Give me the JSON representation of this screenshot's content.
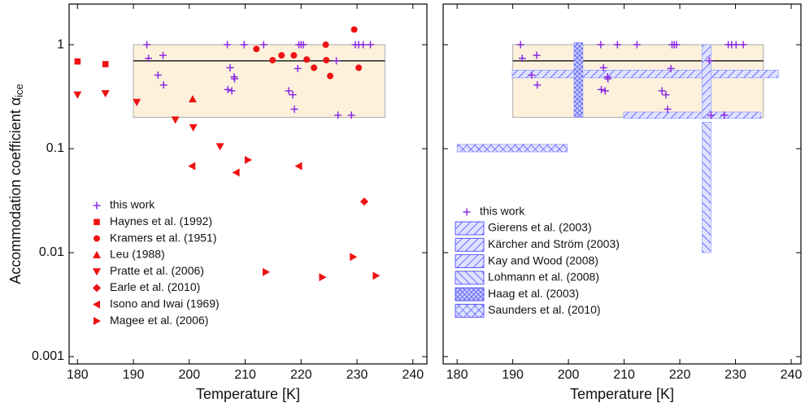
{
  "chart_data": [
    {
      "type": "scatter",
      "x_label": "Temperature [K]",
      "y_label": "Accommodation coefficient α",
      "y_label_sub": "ice",
      "xlim": [
        178.5,
        242.5
      ],
      "xticks": [
        180,
        190,
        200,
        210,
        220,
        230,
        240
      ],
      "ylim": [
        0.00085,
        2.46
      ],
      "yticks": [
        0.001,
        0.01,
        0.1,
        1
      ],
      "ylog": true,
      "grid": false,
      "legend": "lower left",
      "box": {
        "x": [
          190,
          235
        ],
        "y": [
          0.2,
          1
        ],
        "line": 0.7,
        "color": "#fdf1dc"
      },
      "series": [
        {
          "name": "this work",
          "marker": "plus",
          "color": "#8a2be2",
          "x": [
            192.4,
            192.7,
            194.4,
            195.3,
            195.4,
            206.8,
            207.3,
            206.9,
            207.6,
            208,
            208.1,
            209.8,
            213.3,
            217.8,
            218.5,
            218.8,
            219.4,
            219.6,
            220,
            220.4,
            226.3,
            226.6,
            229,
            229.7,
            230.3,
            231.1,
            232.4
          ],
          "values": [
            1,
            0.74,
            0.51,
            0.79,
            0.41,
            1,
            0.6,
            0.37,
            0.36,
            0.49,
            0.47,
            1,
            1,
            0.36,
            0.33,
            0.24,
            0.59,
            1,
            1,
            1,
            0.7,
            0.21,
            0.21,
            1,
            1,
            1,
            1
          ]
        },
        {
          "name": "Haynes et al. (1992)",
          "marker": "square",
          "color": "#ee1111",
          "x": [
            180,
            185
          ],
          "values": [
            0.69,
            0.65
          ]
        },
        {
          "name": "Kramers et al. (1951)",
          "marker": "circle",
          "color": "#ee1111",
          "x": [
            212,
            214.9,
            216.5,
            218.7,
            221,
            222.3,
            224.4,
            224.5,
            225.2,
            229.5,
            230.3
          ],
          "values": [
            0.91,
            0.71,
            0.79,
            0.79,
            0.72,
            0.6,
            1,
            0.71,
            0.5,
            1.4,
            0.6
          ]
        },
        {
          "name": "Leu (1988)",
          "marker": "triangle-up",
          "color": "#ee1111",
          "x": [
            200.6
          ],
          "values": [
            0.3
          ]
        },
        {
          "name": "Pratte et al. (2006)",
          "marker": "triangle-down",
          "color": "#ee1111",
          "x": [
            180,
            185,
            190.6,
            197.5,
            200.7,
            205.5
          ],
          "values": [
            0.33,
            0.34,
            0.28,
            0.19,
            0.16,
            0.105
          ]
        },
        {
          "name": "Earle et al. (2010)",
          "marker": "diamond",
          "color": "#ee1111",
          "x": [
            231.3
          ],
          "values": [
            0.031
          ]
        },
        {
          "name": "Isono and Iwai (1969)",
          "marker": "triangle-left",
          "color": "#ee1111",
          "x": [
            200.5,
            208.4,
            219.6
          ],
          "values": [
            0.068,
            0.059,
            0.068
          ]
        },
        {
          "name": "Magee et al. (2006)",
          "marker": "triangle-right",
          "color": "#ee1111",
          "x": [
            210.5,
            213.7,
            223.8,
            229.3,
            233.4
          ],
          "values": [
            0.078,
            0.0065,
            0.0058,
            0.0091,
            0.006
          ]
        }
      ]
    },
    {
      "type": "scatter",
      "x_label": "Temperature [K]",
      "xlim": [
        177.5,
        241.75
      ],
      "xticks": [
        180,
        190,
        200,
        210,
        220,
        230,
        240
      ],
      "ylim": [
        0.00085,
        2.46
      ],
      "yticks": [
        0.001,
        0.01,
        0.1,
        1
      ],
      "ylog": true,
      "grid": false,
      "legend": "lower left",
      "box": {
        "x": [
          190,
          235
        ],
        "y": [
          0.2,
          1
        ],
        "line": 0.7,
        "color": "#fdf1dc"
      },
      "series": [
        {
          "name": "this work",
          "marker": "plus",
          "color": "#8a2be2",
          "x": [
            191.4,
            191.7,
            193.4,
            194.3,
            194.4,
            205.8,
            206.3,
            205.9,
            206.6,
            207,
            207.1,
            208.8,
            212.3,
            216.8,
            217.5,
            217.8,
            218.4,
            218.6,
            219,
            219.4,
            225.3,
            225.6,
            228,
            228.7,
            229.3,
            230.1,
            231.4
          ],
          "values": [
            1,
            0.74,
            0.51,
            0.79,
            0.41,
            1,
            0.6,
            0.37,
            0.36,
            0.49,
            0.47,
            1,
            1,
            0.36,
            0.33,
            0.24,
            0.59,
            1,
            1,
            1,
            0.7,
            0.21,
            0.21,
            1,
            1,
            1,
            1
          ]
        }
      ],
      "ranges": [
        {
          "name": "Gierens et al. (2003)",
          "hatch": "forward",
          "x": [
            189.9,
            237.7
          ],
          "y": [
            0.48,
            0.57
          ]
        },
        {
          "name": "Kärcher and Ström (2003)",
          "hatch": "forward",
          "x": [
            209.9,
            234.6
          ],
          "y": [
            0.195,
            0.225
          ]
        },
        {
          "name": "Kay and Wood (2008)",
          "hatch": "forward",
          "x": [
            224,
            225.6
          ],
          "y": [
            0.2,
            1
          ]
        },
        {
          "name": "Lohmann et al. (2008)",
          "hatch": "backward",
          "x": [
            224,
            225.6
          ],
          "y": [
            0.01,
            0.18
          ]
        },
        {
          "name": "Haag et al. (2003)",
          "hatch": "cross-dense",
          "x": [
            201,
            202.6
          ],
          "y": [
            0.2,
            1.05
          ]
        },
        {
          "name": "Saunders et al. (2010)",
          "hatch": "cross",
          "x": [
            180,
            199.8
          ],
          "y": [
            0.093,
            0.11
          ]
        }
      ]
    }
  ]
}
